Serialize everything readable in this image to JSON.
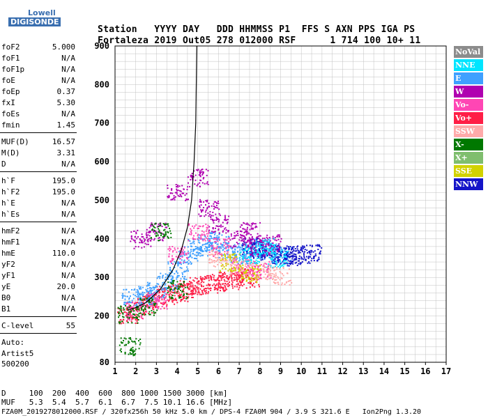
{
  "logo": {
    "line1": "Lowell",
    "line2": "DIGISONDE"
  },
  "header": {
    "labels": [
      "Station",
      "YYYY",
      "DAY",
      "DDD",
      "HHMMSS",
      "P1",
      "FFS",
      "S",
      "AXN",
      "PPS",
      "IGA",
      "PS"
    ],
    "values": [
      "Fortaleza",
      "2019",
      "Out05",
      "278",
      "012000",
      "RSF",
      "",
      "1",
      "714",
      "100",
      "10+",
      "11"
    ]
  },
  "params": [
    {
      "name": "foF2",
      "value": "5.000"
    },
    {
      "name": "foF1",
      "value": "N/A"
    },
    {
      "name": "foF1p",
      "value": "N/A"
    },
    {
      "name": "foE",
      "value": "N/A"
    },
    {
      "name": "foEp",
      "value": "0.37"
    },
    {
      "name": "fxI",
      "value": "5.30"
    },
    {
      "name": "foEs",
      "value": "N/A"
    },
    {
      "name": "fmin",
      "value": "1.45"
    },
    {
      "name": "MUF(D)",
      "value": "16.57"
    },
    {
      "name": "M(D)",
      "value": "3.31"
    },
    {
      "name": "D",
      "value": "N/A"
    },
    {
      "name": "h`F",
      "value": "195.0"
    },
    {
      "name": "h`F2",
      "value": "195.0"
    },
    {
      "name": "h`E",
      "value": "N/A"
    },
    {
      "name": "h`Es",
      "value": "N/A"
    },
    {
      "name": "hmF2",
      "value": "N/A"
    },
    {
      "name": "hmF1",
      "value": "N/A"
    },
    {
      "name": "hmE",
      "value": "110.0"
    },
    {
      "name": "yF2",
      "value": "N/A"
    },
    {
      "name": "yF1",
      "value": "N/A"
    },
    {
      "name": "yE",
      "value": "20.0"
    },
    {
      "name": "B0",
      "value": "N/A"
    },
    {
      "name": "B1",
      "value": "N/A"
    },
    {
      "name": "C-level",
      "value": "55"
    }
  ],
  "auto": {
    "line1": "Auto:",
    "line2": "Artist5",
    "line3": "500200"
  },
  "legend": [
    {
      "label": "NoVal",
      "color": "#8c8c8c"
    },
    {
      "label": "NNE",
      "color": "#00e5ff"
    },
    {
      "label": "E",
      "color": "#3fa0ff"
    },
    {
      "label": "W",
      "color": "#b000b0"
    },
    {
      "label": "Vo-",
      "color": "#ff46b4"
    },
    {
      "label": "Vo+",
      "color": "#ff1e46"
    },
    {
      "label": "SSW",
      "color": "#ffaaaa"
    },
    {
      "label": "X-",
      "color": "#007800"
    },
    {
      "label": "X+",
      "color": "#7fbe6e"
    },
    {
      "label": "SSE",
      "color": "#d2d200"
    },
    {
      "label": "NNW",
      "color": "#1414c8"
    }
  ],
  "footer": {
    "d_row": "D     100  200  400  600  800 1000 1500 3000 [km]",
    "muf_row": "MUF   5.3  5.4  5.7  6.1  6.7  7.5 10.1 16.6 [MHz]",
    "file_row": "FZA0M_2019278012000.RSF / 320fx256h 50 kHz 5.0 km / DPS-4 FZA0M 904 / 3.9 S 321.6 E   Ion2Png 1.3.20"
  },
  "chart_data": {
    "type": "scatter",
    "xlim": [
      1,
      17
    ],
    "ylim": [
      80,
      900
    ],
    "xticks": [
      "1",
      "2",
      "3",
      "4",
      "5",
      "6",
      "7",
      "8",
      "9",
      "10",
      "11",
      "12",
      "13",
      "14",
      "15",
      "16",
      "17"
    ],
    "yticks": [
      "80",
      "200",
      "300",
      "400",
      "500",
      "600",
      "700",
      "800",
      "900"
    ],
    "grid": true,
    "clusters": [
      {
        "series": "Vo+",
        "points": [
          [
            1.6,
            205
          ],
          [
            2,
            215
          ],
          [
            2.5,
            230
          ],
          [
            3,
            245
          ],
          [
            3.5,
            255
          ],
          [
            4,
            262
          ],
          [
            4.5,
            270
          ],
          [
            5,
            278
          ],
          [
            5.5,
            283
          ],
          [
            6,
            288
          ],
          [
            6.5,
            292
          ],
          [
            7,
            297
          ],
          [
            7.5,
            300
          ]
        ]
      },
      {
        "series": "E",
        "points": [
          [
            1.8,
            250
          ],
          [
            2.5,
            255
          ],
          [
            3,
            265
          ],
          [
            3.5,
            290
          ],
          [
            4,
            320
          ],
          [
            4.5,
            360
          ],
          [
            5,
            380
          ],
          [
            5.5,
            390
          ],
          [
            6,
            395
          ],
          [
            6.5,
            370
          ],
          [
            7,
            360
          ],
          [
            7.5,
            370
          ],
          [
            8,
            380
          ],
          [
            8.5,
            370
          ],
          [
            9,
            360
          ]
        ]
      },
      {
        "series": "NNW",
        "points": [
          [
            7.6,
            380
          ],
          [
            8,
            375
          ],
          [
            8.5,
            365
          ],
          [
            9,
            360
          ],
          [
            9.5,
            355
          ],
          [
            10,
            360
          ],
          [
            10.5,
            365
          ]
        ]
      },
      {
        "series": "W",
        "points": [
          [
            2.2,
            400
          ],
          [
            3,
            420
          ],
          [
            4,
            520
          ],
          [
            5,
            560
          ],
          [
            5.5,
            480
          ],
          [
            6,
            440
          ],
          [
            7,
            400
          ],
          [
            7.5,
            420
          ],
          [
            8,
            380
          ],
          [
            8.5,
            390
          ]
        ]
      },
      {
        "series": "Vo-",
        "points": [
          [
            2,
            215
          ],
          [
            3,
            240
          ],
          [
            4,
            360
          ],
          [
            5,
            420
          ],
          [
            6,
            380
          ],
          [
            7,
            330
          ],
          [
            8,
            320
          ]
        ]
      },
      {
        "series": "X-",
        "points": [
          [
            1.6,
            205
          ],
          [
            2.5,
            225
          ],
          [
            3.2,
            420
          ],
          [
            1.7,
            122
          ],
          [
            4,
            270
          ]
        ]
      },
      {
        "series": "NNE",
        "points": [
          [
            7.5,
            360
          ],
          [
            8.2,
            380
          ],
          [
            8.8,
            350
          ]
        ]
      },
      {
        "series": "SSW",
        "points": [
          [
            6,
            350
          ],
          [
            7,
            330
          ],
          [
            8,
            315
          ],
          [
            9,
            305
          ]
        ]
      },
      {
        "series": "SSE",
        "points": [
          [
            6.5,
            340
          ],
          [
            7.5,
            310
          ]
        ]
      }
    ],
    "trace": [
      [
        4.95,
        900
      ],
      [
        4.9,
        700
      ],
      [
        4.82,
        600
      ],
      [
        4.7,
        500
      ],
      [
        4.5,
        430
      ],
      [
        4.2,
        370
      ],
      [
        3.8,
        320
      ],
      [
        3.2,
        270
      ],
      [
        2.5,
        235
      ],
      [
        2,
        222
      ],
      [
        1.6,
        215
      ]
    ]
  }
}
